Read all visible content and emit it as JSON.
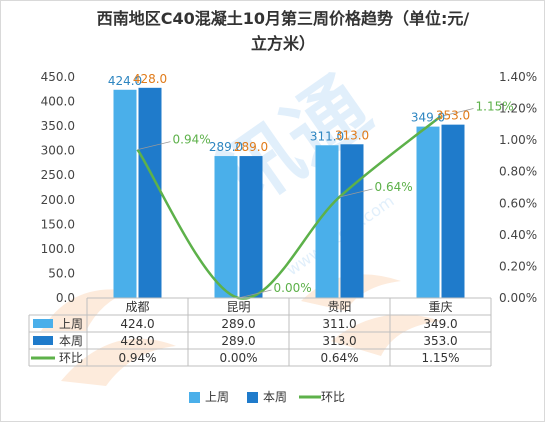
{
  "chart_data": {
    "type": "bar",
    "title": "西南地区C40混凝土10月第三周价格趋势（单位:元/立方米）",
    "categories": [
      "成都",
      "昆明",
      "贵阳",
      "重庆"
    ],
    "series": [
      {
        "name": "上周",
        "kind": "bar",
        "axis": "left",
        "values": [
          424.0,
          289.0,
          311.0,
          349.0
        ],
        "labels": [
          "424.0",
          "289.0",
          "311.0",
          "349.0"
        ],
        "color": "#4AAFEA",
        "label_color": "#2E86C1"
      },
      {
        "name": "本周",
        "kind": "bar",
        "axis": "left",
        "values": [
          428.0,
          289.0,
          313.0,
          353.0
        ],
        "labels": [
          "428.0",
          "289.0",
          "313.0",
          "353.0"
        ],
        "color": "#1F7BCB",
        "label_color": "#E07B1A"
      },
      {
        "name": "环比",
        "kind": "line",
        "axis": "right",
        "values": [
          0.94,
          0.0,
          0.64,
          1.15
        ],
        "labels": [
          "0.94%",
          "0.00%",
          "0.64%",
          "1.15%"
        ],
        "color": "#5DB14A",
        "label_color": "#5DB14A"
      }
    ],
    "y_left": {
      "min": 0,
      "max": 450,
      "step": 50,
      "ticks": [
        "0.0",
        "50.0",
        "100.0",
        "150.0",
        "200.0",
        "250.0",
        "300.0",
        "350.0",
        "400.0",
        "450.0"
      ]
    },
    "y_right": {
      "min": 0,
      "max": 1.4,
      "step": 0.2,
      "unit": "%",
      "ticks": [
        "0.00%",
        "0.20%",
        "0.40%",
        "0.60%",
        "0.80%",
        "1.00%",
        "1.20%",
        "1.40%"
      ]
    },
    "table": {
      "rows": [
        {
          "series": "上周",
          "cells": [
            "424.0",
            "289.0",
            "311.0",
            "349.0"
          ]
        },
        {
          "series": "本周",
          "cells": [
            "428.0",
            "289.0",
            "313.0",
            "353.0"
          ]
        },
        {
          "series": "环比",
          "cells": [
            "0.94%",
            "0.00%",
            "0.64%",
            "1.15%"
          ]
        }
      ]
    },
    "legend": {
      "position": "bottom",
      "items": [
        "上周",
        "本周",
        "环比"
      ]
    },
    "grid": false,
    "watermark": {
      "text": "www.zltom.com",
      "brand": "讯通"
    }
  }
}
